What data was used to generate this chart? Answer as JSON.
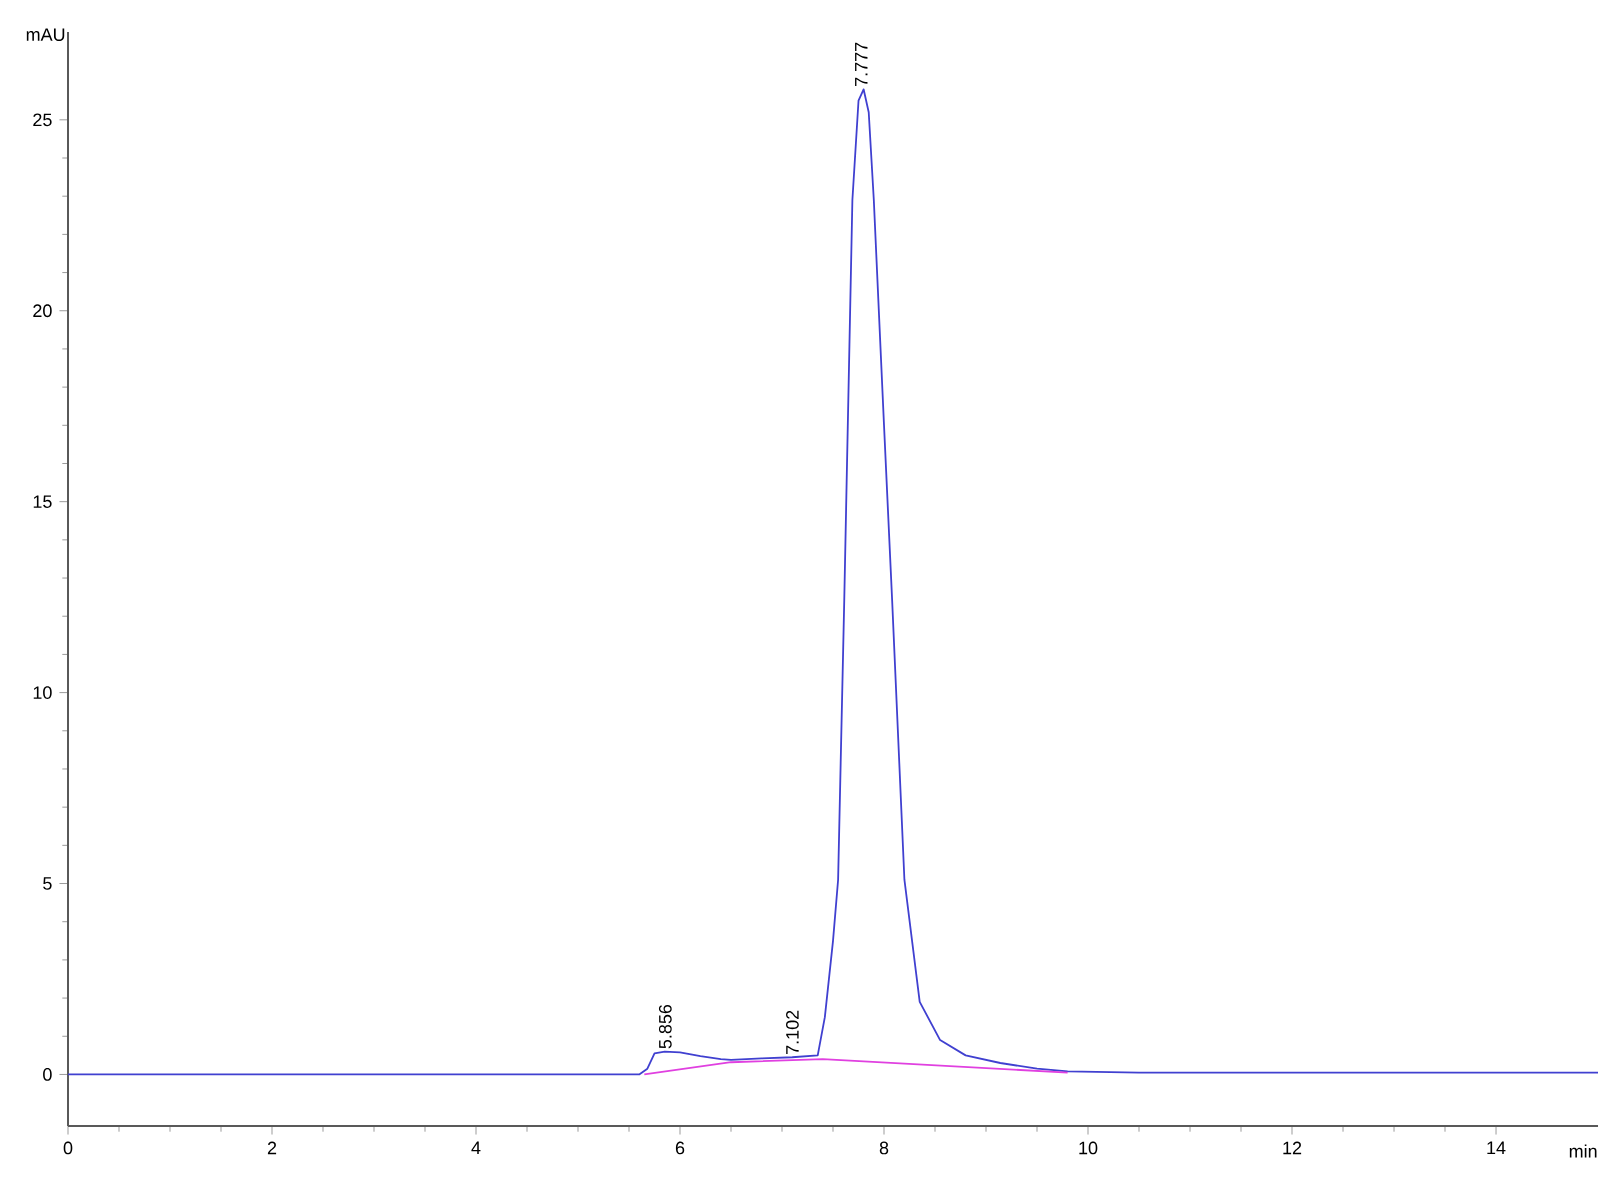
{
  "chart_data": {
    "type": "line",
    "xlabel": "min",
    "ylabel": "mAU",
    "xlim": [
      0,
      15
    ],
    "ylim": [
      -1.35,
      27.3
    ],
    "xticks": [
      0,
      2,
      4,
      6,
      8,
      10,
      12,
      14
    ],
    "yticks": [
      0,
      5,
      10,
      15,
      20,
      25
    ],
    "grid": false,
    "marker": "none",
    "line_style": "solid",
    "series": [
      {
        "color": "#4040d0",
        "x": [
          0,
          1,
          2,
          3,
          4,
          5,
          5.6,
          5.68,
          5.75,
          5.85,
          6.0,
          6.2,
          6.4,
          6.5,
          6.8,
          7.1,
          7.35,
          7.42,
          7.5,
          7.55,
          7.61,
          7.69,
          7.75,
          7.8,
          7.85,
          7.9,
          8.0,
          8.08,
          8.2,
          8.35,
          8.55,
          8.8,
          9.14,
          9.5,
          9.8,
          10.5,
          12,
          14,
          15
        ],
        "values": [
          0,
          0,
          0,
          0,
          0,
          0,
          0,
          0.15,
          0.55,
          0.6,
          0.58,
          0.48,
          0.4,
          0.38,
          0.42,
          0.45,
          0.5,
          1.5,
          3.5,
          5.1,
          12.4,
          22.9,
          25.5,
          25.8,
          25.2,
          22.9,
          17,
          12.4,
          5.1,
          1.9,
          0.9,
          0.5,
          0.3,
          0.15,
          0.08,
          0.05,
          0.05,
          0.05,
          0.05
        ]
      },
      {
        "color": "#e040e0",
        "x": [
          5.65,
          6.5,
          7.4,
          9.8
        ],
        "values": [
          0,
          0.32,
          0.4,
          0.05
        ]
      }
    ],
    "annotations": [
      {
        "text": "5.856",
        "x": 5.856,
        "y": 0.6
      },
      {
        "text": "7.102",
        "x": 7.102,
        "y": 0.45
      },
      {
        "text": "7.777",
        "x": 7.777,
        "y": 25.8
      }
    ]
  }
}
